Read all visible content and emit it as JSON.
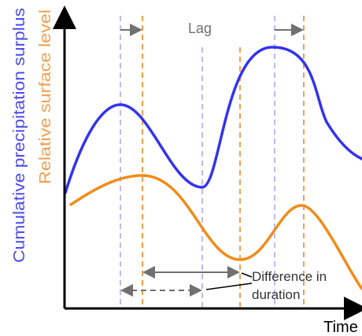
{
  "labels": {
    "x_axis": "Time",
    "y_axis_blue": "Cumulative precipitation surplus",
    "y_axis_orange": "Relative surface level",
    "lag": "Lag",
    "difference_line1": "Difference in",
    "difference_line2": "duration"
  },
  "colors": {
    "blue_series": "#3333ee",
    "orange_series": "#f08c1a",
    "blue_guide": "#bbbbf5",
    "orange_guide": "#f0a050",
    "annotation": "#707070",
    "axis": "#000000",
    "text": "#333333"
  }
}
